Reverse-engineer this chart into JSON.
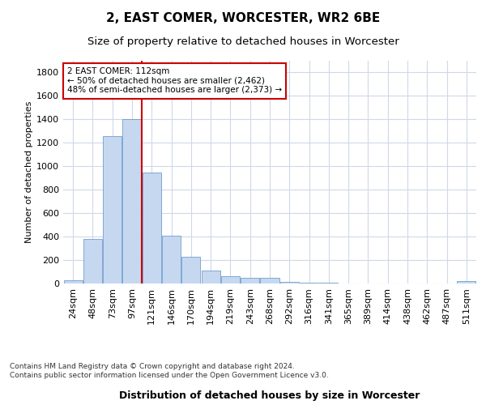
{
  "title": "2, EAST COMER, WORCESTER, WR2 6BE",
  "subtitle": "Size of property relative to detached houses in Worcester",
  "xlabel": "Distribution of detached houses by size in Worcester",
  "ylabel": "Number of detached properties",
  "bar_color": "#c5d8f0",
  "bar_edge_color": "#5b8ec4",
  "background_color": "#ffffff",
  "grid_color": "#d0d8e8",
  "vline_color": "#cc0000",
  "vline_x": 3.5,
  "annotation_text": "2 EAST COMER: 112sqm\n← 50% of detached houses are smaller (2,462)\n48% of semi-detached houses are larger (2,373) →",
  "annotation_box_color": "#ffffff",
  "annotation_border_color": "#cc0000",
  "footer_text": "Contains HM Land Registry data © Crown copyright and database right 2024.\nContains public sector information licensed under the Open Government Licence v3.0.",
  "categories": [
    "24sqm",
    "48sqm",
    "73sqm",
    "97sqm",
    "121sqm",
    "146sqm",
    "170sqm",
    "194sqm",
    "219sqm",
    "243sqm",
    "268sqm",
    "292sqm",
    "316sqm",
    "341sqm",
    "365sqm",
    "389sqm",
    "414sqm",
    "438sqm",
    "462sqm",
    "487sqm",
    "511sqm"
  ],
  "values": [
    25,
    380,
    1260,
    1400,
    950,
    410,
    230,
    110,
    65,
    50,
    45,
    15,
    10,
    5,
    2,
    1,
    0,
    0,
    0,
    0,
    20
  ],
  "ylim": [
    0,
    1900
  ],
  "yticks": [
    0,
    200,
    400,
    600,
    800,
    1000,
    1200,
    1400,
    1600,
    1800
  ],
  "title_fontsize": 11,
  "subtitle_fontsize": 9.5,
  "xlabel_fontsize": 9,
  "ylabel_fontsize": 8,
  "tick_fontsize": 8,
  "footer_fontsize": 6.5
}
